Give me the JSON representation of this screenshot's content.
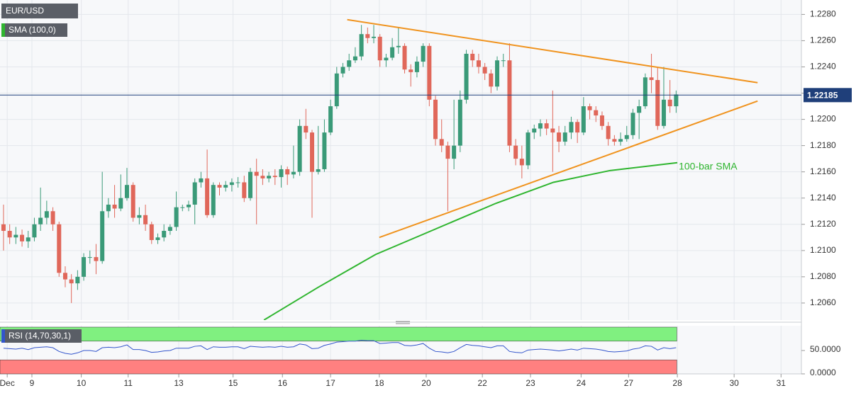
{
  "chart_data": {
    "type": "candlestick",
    "title": "EUR/USD",
    "indicator_label": "SMA (100,0)",
    "xlim": [
      -0.57,
      129.3
    ],
    "ylim": [
      1.2047,
      1.2291
    ],
    "grid": true,
    "up_color": "#3a9a78",
    "down_color": "#e0675a",
    "yticks": [
      {
        "value": 1.206,
        "label": "1.2060"
      },
      {
        "value": 1.208,
        "label": "1.2080"
      },
      {
        "value": 1.21,
        "label": "1.2100"
      },
      {
        "value": 1.212,
        "label": "1.2120"
      },
      {
        "value": 1.214,
        "label": "1.2140"
      },
      {
        "value": 1.216,
        "label": "1.2160"
      },
      {
        "value": 1.218,
        "label": "1.2180"
      },
      {
        "value": 1.22,
        "label": "1.2200"
      },
      {
        "value": 1.222,
        "label": "1.2220"
      },
      {
        "value": 1.224,
        "label": "1.2240"
      },
      {
        "value": 1.226,
        "label": "1.2260"
      },
      {
        "value": 1.228,
        "label": "1.2280"
      }
    ],
    "xticks": [
      {
        "value": 0.6,
        "label": "Dec"
      },
      {
        "value": 4.6,
        "label": "9"
      },
      {
        "value": 12.6,
        "label": "10"
      },
      {
        "value": 20.2,
        "label": "11"
      },
      {
        "value": 28.4,
        "label": "13"
      },
      {
        "value": 37.2,
        "label": "15"
      },
      {
        "value": 45.2,
        "label": "16"
      },
      {
        "value": 53,
        "label": "17"
      },
      {
        "value": 60.9,
        "label": "18"
      },
      {
        "value": 68.5,
        "label": "20"
      },
      {
        "value": 77.6,
        "label": "22"
      },
      {
        "value": 85.4,
        "label": "23"
      },
      {
        "value": 93.6,
        "label": "24"
      },
      {
        "value": 101.3,
        "label": "27"
      },
      {
        "value": 109.2,
        "label": "28"
      },
      {
        "value": 118.4,
        "label": "30"
      },
      {
        "value": 126,
        "label": "31"
      }
    ],
    "open": [
      1.212,
      1.2115,
      1.211,
      1.2112,
      1.2107,
      1.211,
      1.212,
      1.2125,
      1.213,
      1.212,
      1.2083,
      1.2078,
      1.2075,
      1.208,
      1.2095,
      1.2095,
      1.2092,
      1.213,
      1.2135,
      1.2132,
      1.214,
      1.215,
      1.2125,
      1.2127,
      1.212,
      1.2108,
      1.211,
      1.2115,
      1.2118,
      1.2133,
      1.2133,
      1.2135,
      1.2152,
      1.2155,
      1.2127,
      1.215,
      1.2148,
      1.215,
      1.2152,
      1.2152,
      1.214,
      1.216,
      1.2157,
      1.2155,
      1.2157,
      1.2156,
      1.2162,
      1.2158,
      1.216,
      1.2195,
      1.219,
      1.216,
      1.2162,
      1.219,
      1.221,
      1.2235,
      1.224,
      1.2245,
      1.2248,
      1.2265,
      1.2262,
      1.2263,
      1.2245,
      1.2247,
      1.2255,
      1.2256,
      1.2238,
      1.2236,
      1.2244,
      1.2256,
      1.2215,
      1.2185,
      1.218,
      1.217,
      1.218,
      1.2215,
      1.225,
      1.2245,
      1.224,
      1.2235,
      1.2225,
      1.2245,
      1.2245,
      1.218,
      1.217,
      1.2165,
      1.219,
      1.2193,
      1.2197,
      1.2193,
      1.219,
      1.2183,
      1.219,
      1.2198,
      1.219,
      1.221,
      1.2207,
      1.2203,
      1.2195,
      1.2185,
      1.2183,
      1.2185,
      1.2188,
      1.2205,
      1.221,
      1.2232,
      1.223,
      1.2195,
      1.2215,
      1.221
    ],
    "high": [
      1.2135,
      1.212,
      1.2118,
      1.2116,
      1.2115,
      1.2125,
      1.2148,
      1.2138,
      1.2133,
      1.2122,
      1.2088,
      1.2082,
      1.2085,
      1.2098,
      1.21,
      1.2105,
      1.216,
      1.214,
      1.215,
      1.2158,
      1.2163,
      1.2152,
      1.2133,
      1.2135,
      1.2122,
      1.2113,
      1.212,
      1.212,
      1.2145,
      1.2135,
      1.2138,
      1.2155,
      1.216,
      1.2177,
      1.2152,
      1.2152,
      1.2153,
      1.2155,
      1.2156,
      1.2157,
      1.2163,
      1.217,
      1.2162,
      1.216,
      1.2162,
      1.2165,
      1.2164,
      1.218,
      1.22,
      1.2208,
      1.2192,
      1.2195,
      1.22,
      1.2215,
      1.224,
      1.2243,
      1.225,
      1.2255,
      1.2272,
      1.227,
      1.2272,
      1.2265,
      1.225,
      1.2262,
      1.227,
      1.2258,
      1.2242,
      1.2248,
      1.2258,
      1.2258,
      1.2218,
      1.22,
      1.2183,
      1.2215,
      1.2222,
      1.2253,
      1.2253,
      1.225,
      1.2243,
      1.2238,
      1.2248,
      1.225,
      1.2258,
      1.2185,
      1.218,
      1.2192,
      1.2196,
      1.22,
      1.22,
      1.2222,
      1.2195,
      1.2195,
      1.2202,
      1.22,
      1.2217,
      1.2212,
      1.221,
      1.2206,
      1.2198,
      1.2188,
      1.219,
      1.2195,
      1.2208,
      1.2215,
      1.2235,
      1.225,
      1.224,
      1.224,
      1.223,
      1.2222
    ],
    "low": [
      1.21,
      1.2105,
      1.2105,
      1.2103,
      1.2102,
      1.2107,
      1.2115,
      1.212,
      1.2115,
      1.208,
      1.2072,
      1.206,
      1.207,
      1.2077,
      1.209,
      1.2082,
      1.209,
      1.2125,
      1.2125,
      1.213,
      1.2138,
      1.2122,
      1.212,
      1.2115,
      1.2105,
      1.2105,
      1.2107,
      1.2112,
      1.2115,
      1.213,
      1.213,
      1.212,
      1.2148,
      1.2125,
      1.2125,
      1.2142,
      1.2145,
      1.2145,
      1.2148,
      1.2137,
      1.2138,
      1.212,
      1.215,
      1.2152,
      1.215,
      1.2148,
      1.215,
      1.2155,
      1.2157,
      1.2185,
      1.2125,
      1.2158,
      1.216,
      1.2188,
      1.2208,
      1.2232,
      1.2237,
      1.2243,
      1.2245,
      1.2258,
      1.2258,
      1.224,
      1.224,
      1.2245,
      1.225,
      1.2235,
      1.2225,
      1.2232,
      1.224,
      1.221,
      1.218,
      1.2175,
      1.213,
      1.2162,
      1.2175,
      1.2212,
      1.224,
      1.2235,
      1.223,
      1.222,
      1.2222,
      1.224,
      1.2175,
      1.2165,
      1.2155,
      1.2162,
      1.2185,
      1.2187,
      1.2188,
      1.216,
      1.2175,
      1.218,
      1.2185,
      1.2182,
      1.2188,
      1.22,
      1.2198,
      1.2192,
      1.218,
      1.218,
      1.218,
      1.2183,
      1.2185,
      1.2185,
      1.2208,
      1.222,
      1.2192,
      1.2193,
      1.2205,
      1.2205
    ],
    "close": [
      1.2115,
      1.211,
      1.2112,
      1.2107,
      1.211,
      1.212,
      1.2125,
      1.213,
      1.212,
      1.2083,
      1.2078,
      1.2075,
      1.208,
      1.2095,
      1.2095,
      1.2092,
      1.213,
      1.2135,
      1.2132,
      1.214,
      1.215,
      1.2125,
      1.2127,
      1.212,
      1.2108,
      1.211,
      1.2115,
      1.2118,
      1.2133,
      1.2133,
      1.2135,
      1.2152,
      1.2155,
      1.2127,
      1.215,
      1.2148,
      1.215,
      1.2152,
      1.2152,
      1.214,
      1.216,
      1.2157,
      1.2155,
      1.2157,
      1.2156,
      1.2162,
      1.2158,
      1.216,
      1.2195,
      1.219,
      1.216,
      1.2162,
      1.219,
      1.221,
      1.2235,
      1.224,
      1.2245,
      1.2248,
      1.2265,
      1.2262,
      1.2263,
      1.2245,
      1.2247,
      1.2255,
      1.2256,
      1.2238,
      1.2236,
      1.2244,
      1.2256,
      1.2215,
      1.2185,
      1.218,
      1.217,
      1.218,
      1.2215,
      1.225,
      1.2245,
      1.224,
      1.2235,
      1.2225,
      1.2245,
      1.2245,
      1.218,
      1.217,
      1.2165,
      1.219,
      1.2193,
      1.2197,
      1.2193,
      1.219,
      1.2183,
      1.219,
      1.2198,
      1.219,
      1.221,
      1.2207,
      1.2203,
      1.2195,
      1.2185,
      1.2183,
      1.2185,
      1.2188,
      1.2205,
      1.221,
      1.2232,
      1.223,
      1.2195,
      1.2215,
      1.221,
      1.2219
    ],
    "last_price": 1.22185,
    "last_price_color": "#1f3f7a",
    "trendlines": [
      {
        "color": "#f0931e",
        "x": [
          55.7,
          122.2
        ],
        "values": [
          1.2276,
          1.2228
        ]
      },
      {
        "color": "#f0931e",
        "x": [
          60.9,
          122.2
        ],
        "values": [
          1.211,
          1.2214
        ]
      }
    ],
    "sma": {
      "name": "100-bar SMA",
      "color": "#2fb52f",
      "x": [
        42.2,
        51,
        60.3,
        68.3,
        79.8,
        89.1,
        98.3,
        109.2
      ],
      "values": [
        1.2047,
        1.2072,
        1.2097,
        1.2113,
        1.2136,
        1.2152,
        1.2161,
        1.2167
      ]
    },
    "rsi": {
      "title": "RSI (14,70,30,1)",
      "color": "#3355cc",
      "ylim": [
        0,
        100
      ],
      "yticks": [
        {
          "value": 50,
          "label": "50.0000"
        },
        {
          "value": 0,
          "label": "0.0000"
        }
      ],
      "upper_band": [
        70,
        100
      ],
      "upper_color": "#80f080",
      "lower_band": [
        0,
        30
      ],
      "lower_color": "#ff8080",
      "values": [
        55,
        54,
        53,
        55,
        52,
        56,
        57,
        58,
        56,
        48,
        44,
        42,
        45,
        50,
        50,
        48,
        56,
        57,
        56,
        58,
        62,
        52,
        52,
        50,
        46,
        47,
        49,
        50,
        55,
        55,
        55,
        59,
        60,
        52,
        58,
        57,
        57,
        58,
        58,
        54,
        59,
        58,
        57,
        58,
        57,
        59,
        57,
        58,
        64,
        62,
        54,
        55,
        61,
        64,
        68,
        69,
        70,
        70,
        72,
        71,
        71,
        65,
        66,
        67,
        67,
        61,
        60,
        62,
        65,
        55,
        48,
        47,
        45,
        48,
        56,
        63,
        61,
        60,
        58,
        56,
        60,
        60,
        48,
        46,
        45,
        51,
        52,
        53,
        52,
        51,
        49,
        51,
        53,
        51,
        55,
        54,
        53,
        51,
        48,
        47,
        48,
        49,
        53,
        55,
        60,
        59,
        51,
        56,
        54,
        56
      ]
    }
  }
}
